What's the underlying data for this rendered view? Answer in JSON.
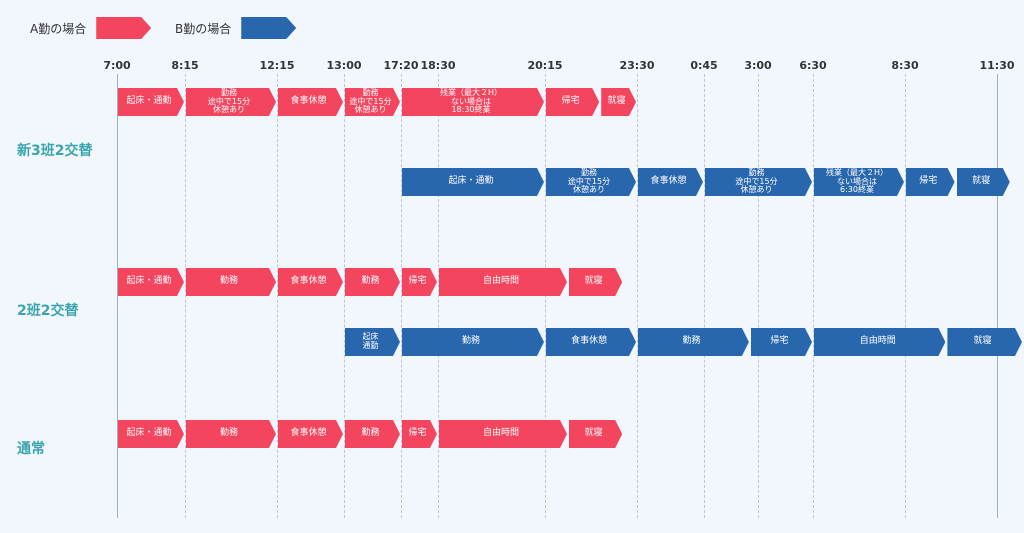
{
  "legend": {
    "a_label": "A勤の場合",
    "b_label": "B勤の場合",
    "a_color": "#f4455f",
    "b_color": "#2867ae"
  },
  "time_labels": [
    "7:00",
    "8:15",
    "12:15",
    "13:00",
    "17:20",
    "18:30",
    "20:15",
    "23:30",
    "0:45",
    "3:00",
    "6:30",
    "8:30",
    "11:30"
  ],
  "rows": [
    {
      "label": "新3班2交替"
    },
    {
      "label": "2班2交替"
    },
    {
      "label": "通常"
    }
  ],
  "lanes": [
    {
      "type": "a",
      "segments": [
        {
          "label": "起床・通勤",
          "start": 0,
          "end": 1
        },
        {
          "label": "勤務\n途中で15分\n休憩あり",
          "start": 1,
          "end": 2
        },
        {
          "label": "食事休憩",
          "start": 2,
          "end": 3
        },
        {
          "label": "勤務\n途中で15分\n休憩あり",
          "start": 3,
          "end": 4
        },
        {
          "label": "残業（最大２H）\nない場合は\n18:30終業",
          "start": 4,
          "end": 6
        },
        {
          "label": "帰宅",
          "start": 6,
          "end": 6.6
        },
        {
          "label": "就寝",
          "start": 6.6,
          "end": 7
        }
      ]
    },
    {
      "type": "b",
      "segments": [
        {
          "label": "起床・通勤",
          "start": 4,
          "end": 6
        },
        {
          "label": "勤務\n途中で15分\n休憩あり",
          "start": 6,
          "end": 7
        },
        {
          "label": "食事休憩",
          "start": 7,
          "end": 8
        },
        {
          "label": "勤務\n途中で15分\n休憩あり",
          "start": 8,
          "end": 10
        },
        {
          "label": "残業（最大２H）\nない場合は\n6:30終業",
          "start": 10,
          "end": 11
        },
        {
          "label": "帰宅",
          "start": 11,
          "end": 11.55
        },
        {
          "label": "就寝",
          "start": 11.55,
          "end": 12.15
        }
      ]
    },
    {
      "type": "a",
      "segments": [
        {
          "label": "起床・通勤",
          "start": 0,
          "end": 1
        },
        {
          "label": "勤務",
          "start": 1,
          "end": 2
        },
        {
          "label": "食事休憩",
          "start": 2,
          "end": 3
        },
        {
          "label": "勤務",
          "start": 3,
          "end": 4
        },
        {
          "label": "帰宅",
          "start": 4,
          "end": 5
        },
        {
          "label": "自由時間",
          "start": 5,
          "end": 6.25
        },
        {
          "label": "就寝",
          "start": 6.25,
          "end": 6.85
        }
      ]
    },
    {
      "type": "b",
      "segments": [
        {
          "label": "起床\n通勤",
          "start": 3,
          "end": 4
        },
        {
          "label": "勤務",
          "start": 4,
          "end": 6
        },
        {
          "label": "食事休憩",
          "start": 6,
          "end": 7
        },
        {
          "label": "勤務",
          "start": 7,
          "end": 8.85
        },
        {
          "label": "帰宅",
          "start": 8.85,
          "end": 10
        },
        {
          "label": "自由時間",
          "start": 10,
          "end": 11.45
        },
        {
          "label": "就寝",
          "start": 11.45,
          "end": 12.3
        }
      ]
    },
    {
      "type": "a",
      "segments": [
        {
          "label": "起床・通勤",
          "start": 0,
          "end": 1
        },
        {
          "label": "勤務",
          "start": 1,
          "end": 2
        },
        {
          "label": "食事休憩",
          "start": 2,
          "end": 3
        },
        {
          "label": "勤務",
          "start": 3,
          "end": 4
        },
        {
          "label": "帰宅",
          "start": 4,
          "end": 5
        },
        {
          "label": "自由時間",
          "start": 5,
          "end": 6.25
        },
        {
          "label": "就寝",
          "start": 6.25,
          "end": 6.85
        }
      ]
    }
  ]
}
